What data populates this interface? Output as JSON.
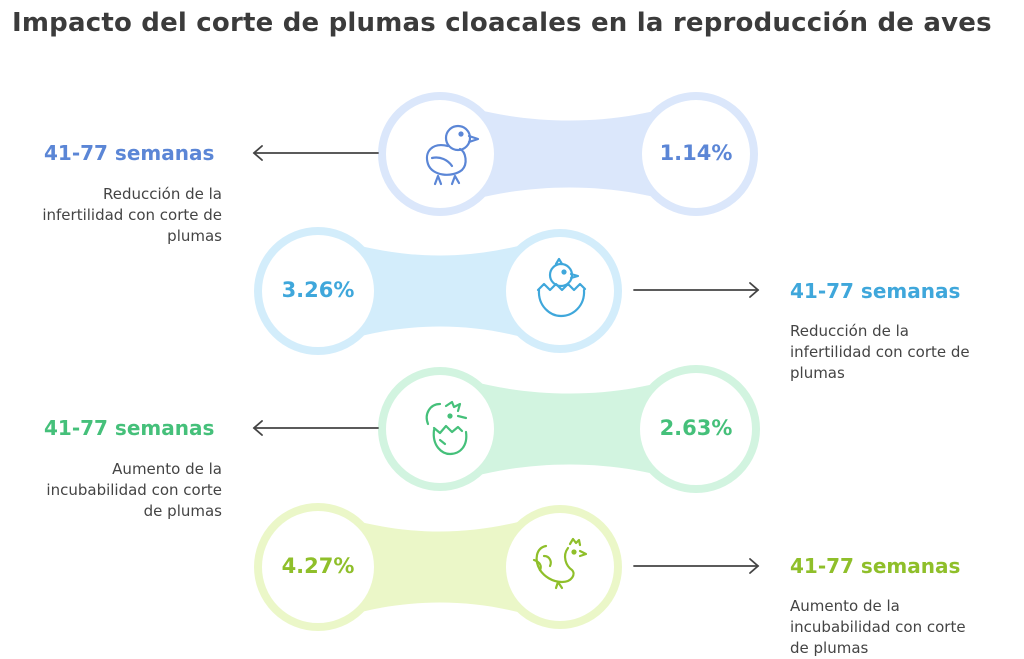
{
  "title": "Impacto del corte de plumas cloacales en la reproducción de aves",
  "items": [
    {
      "value": "1.14%",
      "heading": "41-77 semanas",
      "description": "Reducción de la infertilidad con corte de plumas",
      "icon": "chick-icon",
      "color": "#5b86d6"
    },
    {
      "value": "3.26%",
      "heading": "41-77 semanas",
      "description": "Reducción de la infertilidad con corte de plumas",
      "icon": "chick-hatching-icon",
      "color": "#3fa7db"
    },
    {
      "value": "2.63%",
      "heading": "41-77 semanas",
      "description": "Aumento de la incubabilidad con corte de plumas",
      "icon": "hatching-egg-icon",
      "color": "#45c07a"
    },
    {
      "value": "4.27%",
      "heading": "41-77 semanas",
      "description": "Aumento de la incubabilidad con corte de plumas",
      "icon": "rooster-icon",
      "color": "#8fbf2a"
    }
  ]
}
